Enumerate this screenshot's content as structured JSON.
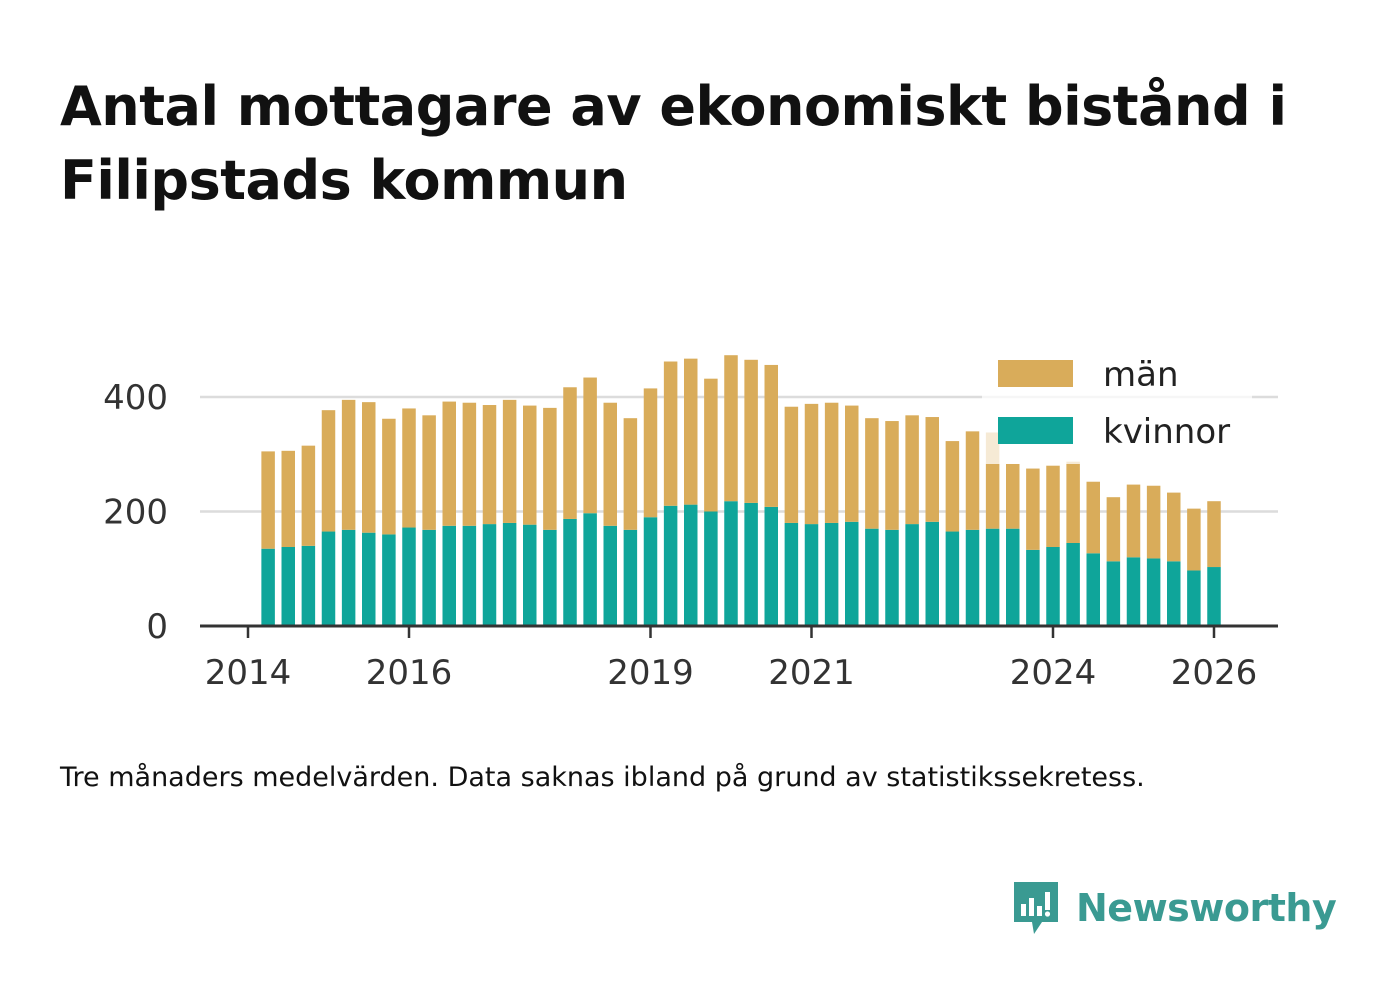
{
  "chart_data": {
    "type": "bar",
    "stacked": true,
    "title": "Antal mottagare av ekonomiskt bistånd i Filipstads kommun",
    "xlabel": "",
    "ylabel": "",
    "ylim": [
      0,
      480
    ],
    "yticks": [
      0,
      200,
      400
    ],
    "x_start": 2014.25,
    "x_step": 0.25,
    "xticks": [
      {
        "value": 2014,
        "label": "2014"
      },
      {
        "value": 2016,
        "label": "2016"
      },
      {
        "value": 2019,
        "label": "2019"
      },
      {
        "value": 2021,
        "label": "2021"
      },
      {
        "value": 2024,
        "label": "2024"
      },
      {
        "value": 2026,
        "label": "2026"
      }
    ],
    "series": [
      {
        "name": "kvinnor",
        "color": "#0fa59a",
        "values": [
          135,
          138,
          140,
          165,
          168,
          163,
          160,
          172,
          168,
          175,
          175,
          178,
          180,
          177,
          168,
          187,
          197,
          175,
          168,
          190,
          210,
          212,
          200,
          218,
          215,
          208,
          180,
          178,
          180,
          182,
          170,
          168,
          178,
          182,
          165,
          168,
          170,
          170,
          133,
          138,
          145,
          127,
          113,
          120,
          118,
          113,
          97,
          103
        ]
      },
      {
        "name": "män",
        "color": "#d9ac5a",
        "values": [
          170,
          168,
          175,
          212,
          227,
          228,
          202,
          208,
          200,
          217,
          215,
          208,
          215,
          208,
          213,
          230,
          237,
          215,
          195,
          225,
          252,
          255,
          232,
          255,
          250,
          248,
          203,
          210,
          210,
          203,
          193,
          190,
          190,
          183,
          158,
          172,
          168,
          113,
          142,
          142,
          142,
          125,
          112,
          127,
          127,
          120,
          108,
          115
        ]
      }
    ],
    "legend": [
      {
        "label": "män",
        "color": "#d9ac5a"
      },
      {
        "label": "kvinnor",
        "color": "#0fa59a"
      }
    ]
  },
  "footnote": "Tre månaders medelvärden. Data saknas ibland på grund av statistikssekretess.",
  "brand": {
    "name": "Newsworthy",
    "color": "#3a9a92"
  }
}
